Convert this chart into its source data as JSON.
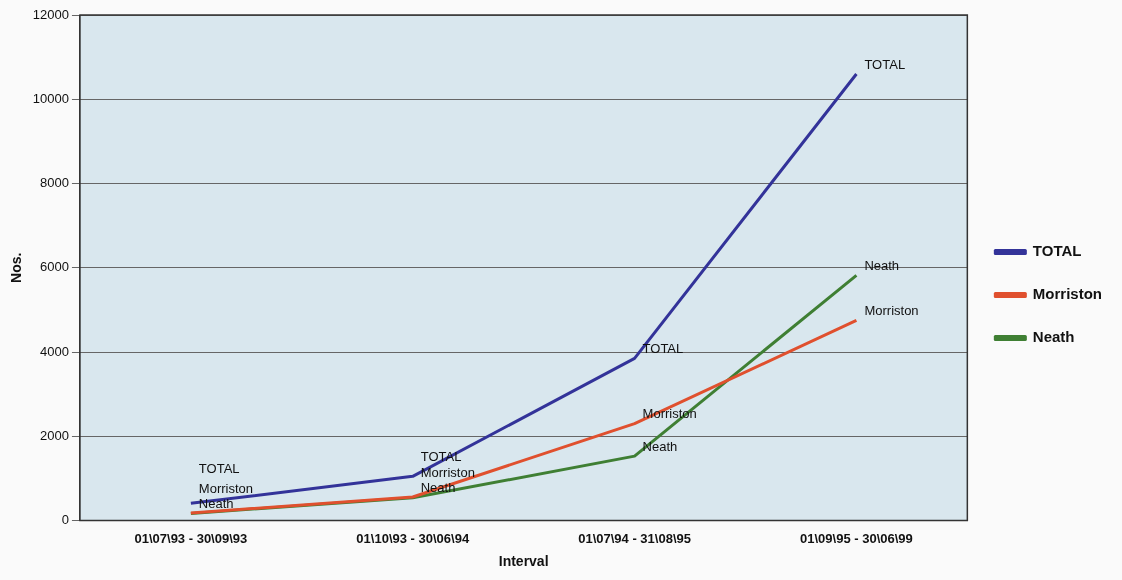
{
  "chart_data": {
    "type": "line",
    "xlabel": "Interval",
    "ylabel": "Nos.",
    "categories": [
      "01\\07\\93 - 30\\09\\93",
      "01\\10\\93 - 30\\06\\94",
      "01\\07\\94 - 31\\08\\95",
      "01\\09\\95 - 30\\06\\99"
    ],
    "series": [
      {
        "name": "TOTAL",
        "color": "#333399",
        "values": [
          410,
          1050,
          3850,
          10600
        ]
      },
      {
        "name": "Morriston",
        "color": "#e0502e",
        "values": [
          180,
          560,
          2300,
          4750
        ]
      },
      {
        "name": "Neath",
        "color": "#3f7f33",
        "values": [
          170,
          540,
          1530,
          5820
        ]
      }
    ],
    "ylim": [
      0,
      12000
    ],
    "yticks": [
      0,
      2000,
      4000,
      6000,
      8000,
      10000,
      12000
    ],
    "grid": "y",
    "legend": "right",
    "marker": "none",
    "line_style": "solid",
    "annotations": [
      {
        "text": "TOTAL",
        "x": "01\\07\\93 - 30\\09\\93",
        "y": 410
      },
      {
        "text": "Morriston",
        "x": "01\\07\\93 - 30\\09\\93",
        "y": 180
      },
      {
        "text": "Neath",
        "x": "01\\07\\93 - 30\\09\\93",
        "y": 170
      },
      {
        "text": "TOTAL",
        "x": "01\\10\\93 - 30\\06\\94",
        "y": 1050
      },
      {
        "text": "Morriston",
        "x": "01\\10\\93 - 30\\06\\94",
        "y": 560
      },
      {
        "text": "Neath",
        "x": "01\\10\\93 - 30\\06\\94",
        "y": 540
      },
      {
        "text": "TOTAL",
        "x": "01\\07\\94 - 31\\08\\95",
        "y": 3850
      },
      {
        "text": "Morriston",
        "x": "01\\07\\94 - 31\\08\\95",
        "y": 2300
      },
      {
        "text": "Neath",
        "x": "01\\07\\94 - 31\\08\\95",
        "y": 1530
      },
      {
        "text": "TOTAL",
        "x": "01\\09\\95 - 30\\06\\99",
        "y": 10600
      },
      {
        "text": "Morriston",
        "x": "01\\09\\95 - 30\\06\\99",
        "y": 4750
      },
      {
        "text": "Neath",
        "x": "01\\09\\95 - 30\\06\\99",
        "y": 5820
      }
    ]
  }
}
